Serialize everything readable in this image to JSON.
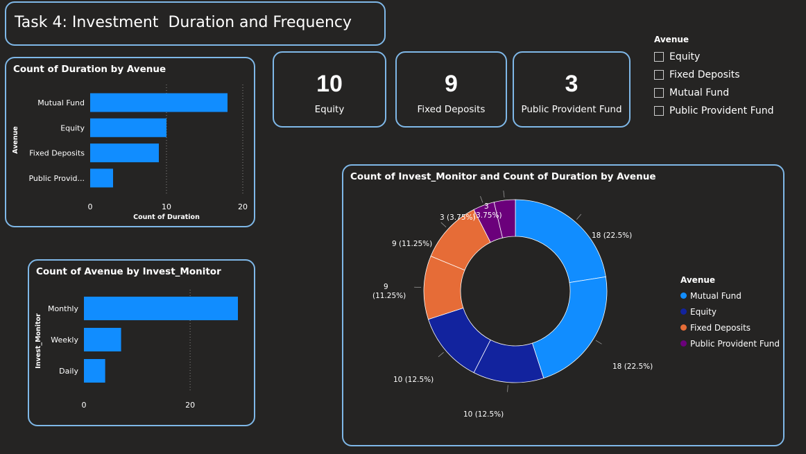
{
  "page_title": "Task 4: Investment  Duration and Frequency",
  "kpis": [
    {
      "value": "10",
      "label": "Equity"
    },
    {
      "value": "9",
      "label": "Fixed Deposits"
    },
    {
      "value": "3",
      "label": "Public Provident Fund"
    }
  ],
  "slicer": {
    "title": "Avenue",
    "options": [
      "Equity",
      "Fixed Deposits",
      "Mutual Fund",
      "Public Provident Fund"
    ]
  },
  "colors": {
    "bar": "#118dff",
    "mutual_fund": "#118dff",
    "equity": "#12239e",
    "fixed_deposits": "#e66c37",
    "ppf": "#6b007b"
  },
  "chart_data": [
    {
      "type": "bar",
      "orientation": "horizontal",
      "title": "Count of Duration by Avenue",
      "xlabel": "Count of Duration",
      "ylabel": "Avenue",
      "categories": [
        "Mutual Fund",
        "Equity",
        "Fixed Deposits",
        "Public Provid..."
      ],
      "values": [
        18,
        10,
        9,
        3
      ],
      "xlim": [
        0,
        20
      ],
      "xticks": [
        0,
        10,
        20
      ],
      "grid": true
    },
    {
      "type": "bar",
      "orientation": "horizontal",
      "title": "Count of Avenue by Invest_Monitor",
      "xlabel": "",
      "ylabel": "Invest_Monitor",
      "categories": [
        "Monthly",
        "Weekly",
        "Daily"
      ],
      "values": [
        29,
        7,
        4
      ],
      "xlim": [
        0,
        29
      ],
      "xticks": [
        0,
        20
      ],
      "grid": true
    },
    {
      "type": "pie",
      "donut": true,
      "title": "Count of Invest_Monitor and Count of Duration by Avenue",
      "legend_title": "Avenue",
      "legend": [
        "Mutual Fund",
        "Equity",
        "Fixed Deposits",
        "Public Provident Fund"
      ],
      "legend_colors": [
        "#118dff",
        "#12239e",
        "#e66c37",
        "#6b007b"
      ],
      "slices": [
        {
          "category": "Mutual Fund",
          "value": 18,
          "label": "18 (22.5%)",
          "color": "#118dff"
        },
        {
          "category": "Mutual Fund",
          "value": 18,
          "label": "18 (22.5%)",
          "color": "#118dff"
        },
        {
          "category": "Equity",
          "value": 10,
          "label": "10 (12.5%)",
          "color": "#12239e"
        },
        {
          "category": "Equity",
          "value": 10,
          "label": "10 (12.5%)",
          "color": "#12239e"
        },
        {
          "category": "Fixed Deposits",
          "value": 9,
          "label": "9 (11.25%)",
          "color": "#e66c37"
        },
        {
          "category": "Fixed Deposits",
          "value": 9,
          "label": "9 (11.25%)",
          "color": "#e66c37"
        },
        {
          "category": "Public Provident Fund",
          "value": 3,
          "label": "3 (3.75%)",
          "color": "#6b007b"
        },
        {
          "category": "Public Provident Fund",
          "value": 3,
          "label": "3 (3.75%)",
          "color": "#6b007b"
        }
      ]
    }
  ]
}
